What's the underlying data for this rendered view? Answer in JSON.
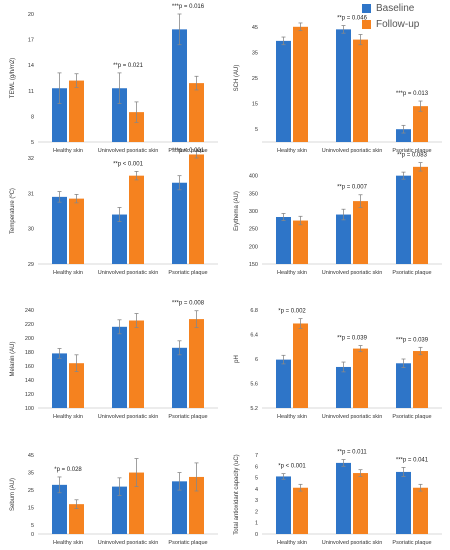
{
  "legend": {
    "entries": [
      {
        "label": "Baseline",
        "color": "#2E75C8"
      },
      {
        "label": "Follow-up",
        "color": "#F5821F"
      }
    ]
  },
  "colors": {
    "baseline": "#2E75C8",
    "followup": "#F5821F",
    "error_bar": "#888888",
    "axis": "#cccccc"
  },
  "chart_data": [
    {
      "type": "bar",
      "id": "tewl",
      "ylabel": "TEWL (g/h/m2)",
      "categories": [
        "Healthy skin",
        "Uninvolved psoriatic skin",
        "Psoriatic plaque"
      ],
      "ylim": [
        5,
        20
      ],
      "yticks": [
        5,
        8,
        11,
        14,
        17,
        20
      ],
      "series": [
        {
          "name": "Baseline",
          "values": [
            11.3,
            11.3,
            18.2
          ],
          "errors": [
            1.8,
            1.8,
            1.8
          ]
        },
        {
          "name": "Follow-up",
          "values": [
            12.2,
            8.5,
            11.9
          ],
          "errors": [
            0.8,
            1.2,
            0.8
          ]
        }
      ],
      "annotations": [
        "",
        "**p = 0.021",
        "***p = 0.016"
      ]
    },
    {
      "type": "bar",
      "id": "sch",
      "ylabel": "SCH (AU)",
      "categories": [
        "Healthy skin",
        "Uninvolved psoriatic skin",
        "Psoriatic plaque"
      ],
      "ylim": [
        0,
        50
      ],
      "yticks": [
        5,
        15,
        25,
        35,
        45
      ],
      "series": [
        {
          "name": "Baseline",
          "values": [
            39.5,
            44,
            5
          ],
          "errors": [
            1.5,
            1.5,
            1.5
          ]
        },
        {
          "name": "Follow-up",
          "values": [
            45,
            40,
            14
          ],
          "errors": [
            1.5,
            2.0,
            2.0
          ]
        }
      ],
      "annotations": [
        "",
        "**p = 0.046",
        "***p = 0.013"
      ]
    },
    {
      "type": "bar",
      "id": "temperature",
      "ylabel": "Temperature (ºC)",
      "categories": [
        "Healthy skin",
        "Uninvolved psoriatic skin",
        "Psoriatic plaque"
      ],
      "ylim": [
        29,
        32
      ],
      "yticks": [
        29,
        30,
        31,
        32
      ],
      "series": [
        {
          "name": "Baseline",
          "values": [
            30.9,
            30.4,
            31.3
          ],
          "errors": [
            0.15,
            0.2,
            0.2
          ]
        },
        {
          "name": "Follow-up",
          "values": [
            30.85,
            31.5,
            32.1
          ],
          "errors": [
            0.12,
            0.12,
            0.1
          ]
        }
      ],
      "annotations": [
        "",
        "**p < 0.001",
        "***p < 0.001"
      ]
    },
    {
      "type": "bar",
      "id": "erythema",
      "ylabel": "Erythema (AU)",
      "categories": [
        "Healthy skin",
        "Uninvolved psoriatic skin",
        "Psoriatic plaque"
      ],
      "ylim": [
        150,
        450
      ],
      "yticks": [
        150,
        200,
        250,
        300,
        350,
        400
      ],
      "series": [
        {
          "name": "Baseline",
          "values": [
            283,
            290,
            400
          ],
          "errors": [
            10,
            15,
            10
          ]
        },
        {
          "name": "Follow-up",
          "values": [
            273,
            328,
            425
          ],
          "errors": [
            12,
            18,
            12
          ]
        }
      ],
      "annotations": [
        "",
        "**p = 0.007",
        "**p = 0.083"
      ]
    },
    {
      "type": "bar",
      "id": "melanin",
      "ylabel": "Melanin (AU)",
      "categories": [
        "Healthy skin",
        "Uninvolved psoriatic skin",
        "Psoriatic plaque"
      ],
      "ylim": [
        100,
        240
      ],
      "yticks": [
        100,
        120,
        140,
        160,
        180,
        200,
        220,
        240
      ],
      "series": [
        {
          "name": "Baseline",
          "values": [
            178,
            216,
            186
          ],
          "errors": [
            7,
            10,
            10
          ]
        },
        {
          "name": "Follow-up",
          "values": [
            164,
            225,
            227
          ],
          "errors": [
            12,
            10,
            12
          ]
        }
      ],
      "annotations": [
        "",
        "",
        "***p = 0.008"
      ]
    },
    {
      "type": "bar",
      "id": "ph",
      "ylabel": "pH",
      "categories": [
        "Healthy skin",
        "Uninvolved psoriatic skin",
        "Psoriatic plaque"
      ],
      "ylim": [
        5.2,
        6.8
      ],
      "yticks": [
        5.2,
        5.6,
        6,
        6.4,
        6.8
      ],
      "series": [
        {
          "name": "Baseline",
          "values": [
            5.99,
            5.87,
            5.93
          ],
          "errors": [
            0.07,
            0.08,
            0.07
          ]
        },
        {
          "name": "Follow-up",
          "values": [
            6.58,
            6.17,
            6.13
          ],
          "errors": [
            0.08,
            0.05,
            0.06
          ]
        }
      ],
      "annotations": [
        "*p = 0.002",
        "**p = 0.039",
        "***p = 0.039"
      ]
    },
    {
      "type": "bar",
      "id": "sebum",
      "ylabel": "Sebum (AU)",
      "categories": [
        "Healthy skin",
        "Uninvolved psoriatic skin",
        "Psoriatic plaque"
      ],
      "ylim": [
        0,
        45
      ],
      "yticks": [
        0,
        5,
        15,
        25,
        35,
        45
      ],
      "series": [
        {
          "name": "Baseline",
          "values": [
            28,
            27,
            30
          ],
          "errors": [
            4.5,
            5,
            5
          ]
        },
        {
          "name": "Follow-up",
          "values": [
            17,
            35,
            32.5
          ],
          "errors": [
            2.5,
            8,
            8
          ]
        }
      ],
      "annotations": [
        "*p = 0.028",
        "",
        ""
      ]
    },
    {
      "type": "bar",
      "id": "tac",
      "ylabel": "Total antioxidant capacity (uC)",
      "categories": [
        "Healthy skin",
        "Uninvolved psoriatic skin",
        "Psoriatic plaque"
      ],
      "ylim": [
        0,
        7
      ],
      "yticks": [
        0,
        1,
        2,
        3,
        4,
        5,
        6,
        7
      ],
      "series": [
        {
          "name": "Baseline",
          "values": [
            5.1,
            6.3,
            5.5
          ],
          "errors": [
            0.25,
            0.3,
            0.4
          ]
        },
        {
          "name": "Follow-up",
          "values": [
            4.1,
            5.4,
            4.1
          ],
          "errors": [
            0.3,
            0.3,
            0.3
          ]
        }
      ],
      "annotations": [
        "*p < 0.001",
        "**p = 0.011",
        "***p = 0.041"
      ]
    }
  ]
}
